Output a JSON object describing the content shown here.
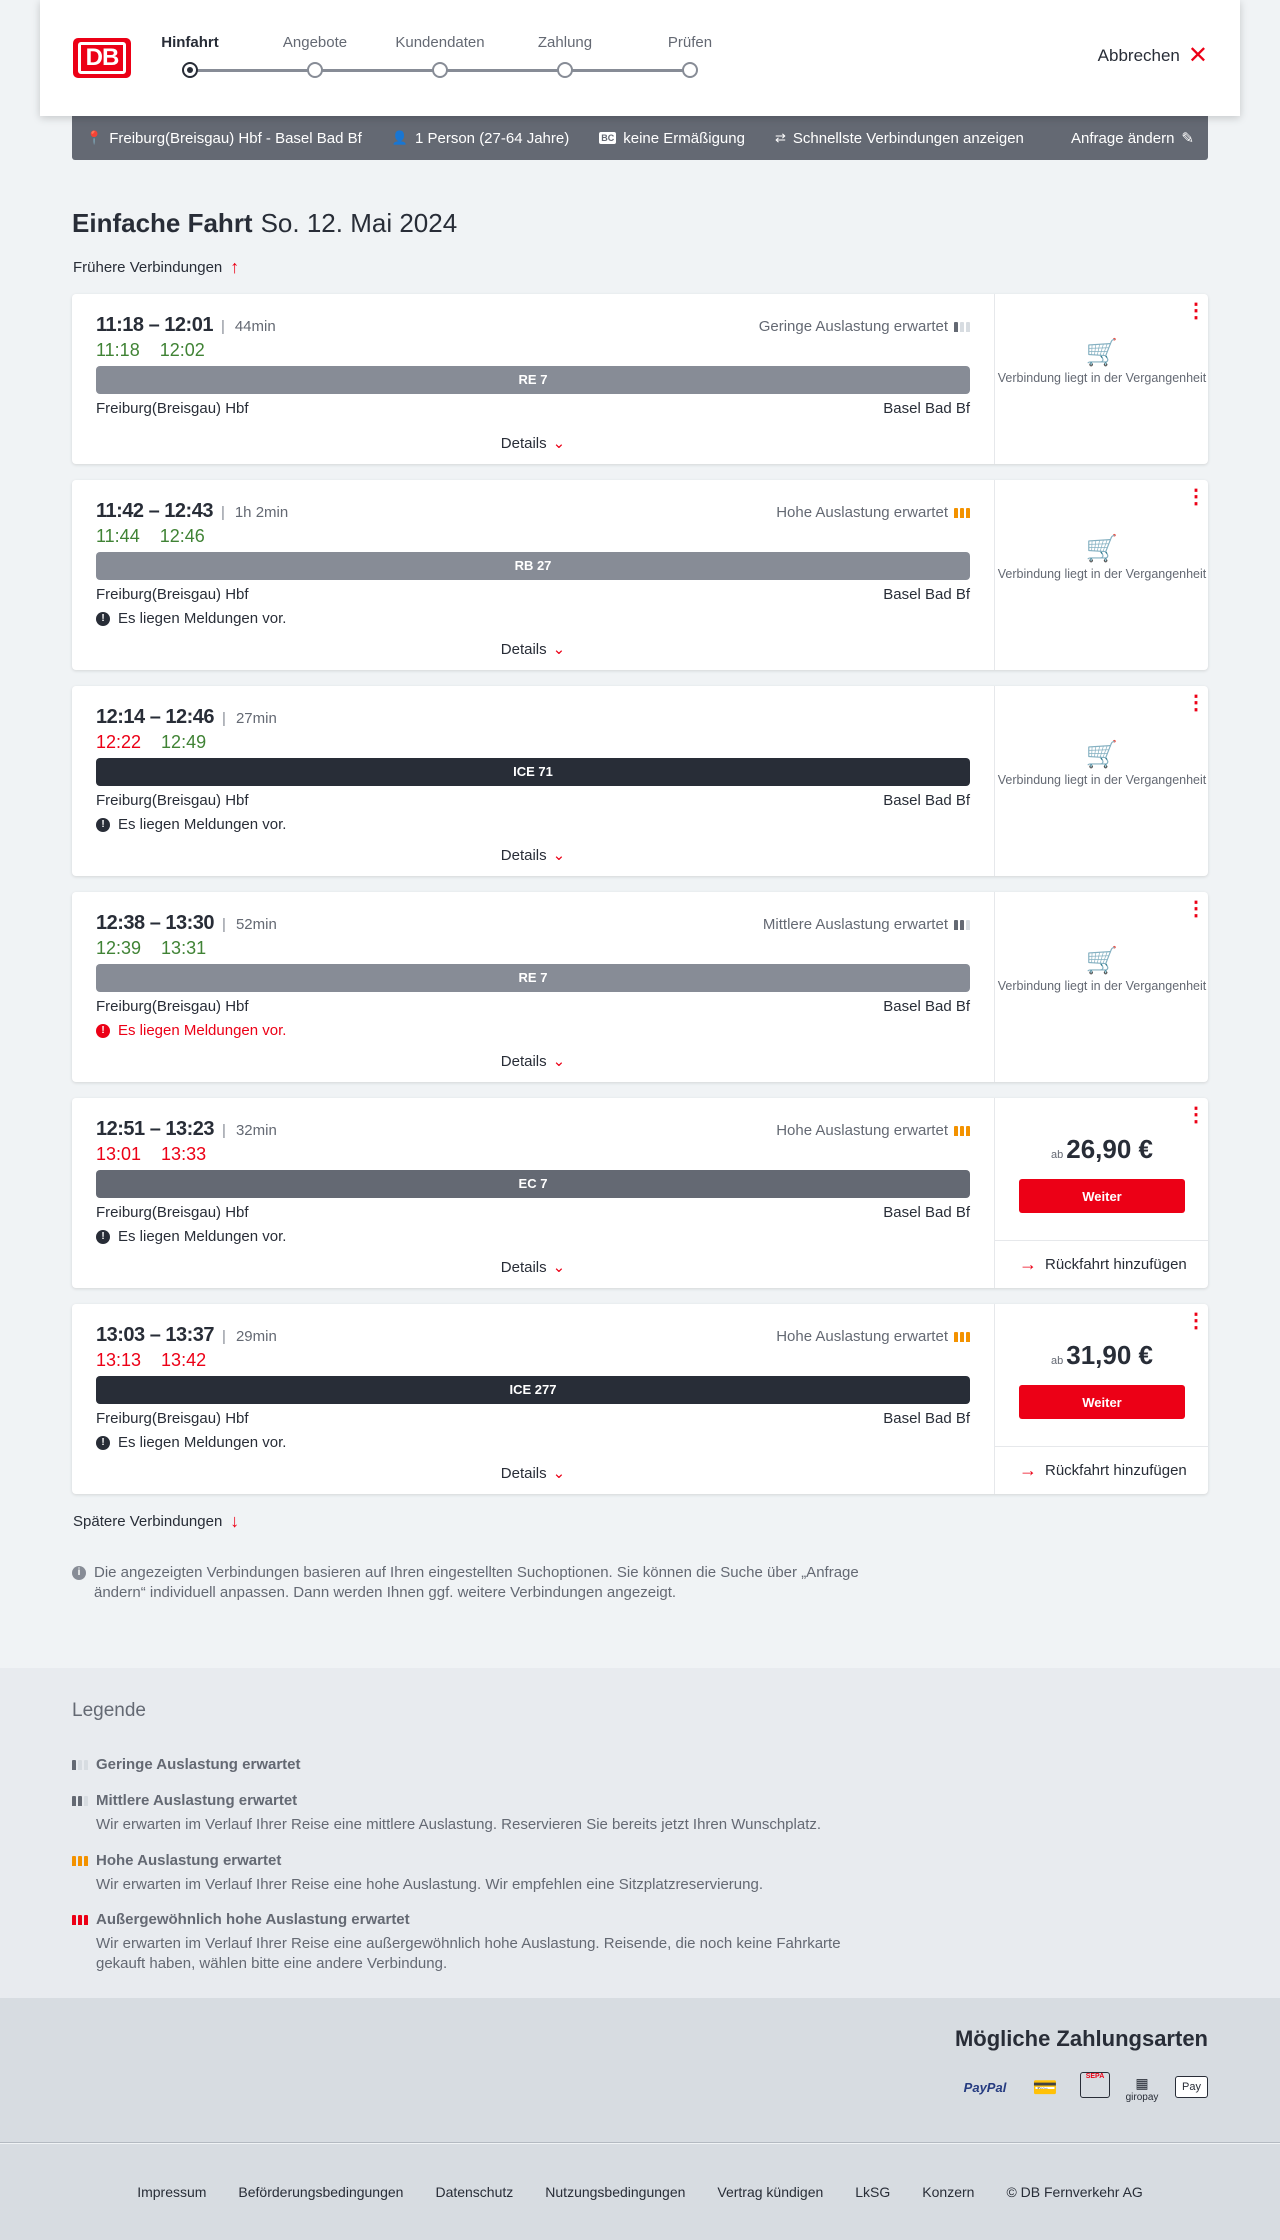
{
  "header": {
    "logo": "DB",
    "cancel": "Abbrechen",
    "steps": [
      {
        "label": "Hinfahrt",
        "active": true
      },
      {
        "label": "Angebote"
      },
      {
        "label": "Kundendaten"
      },
      {
        "label": "Zahlung"
      },
      {
        "label": "Prüfen"
      }
    ]
  },
  "summary": {
    "route": "Freiburg(Breisgau) Hbf - Basel Bad Bf",
    "persons": "1 Person (27-64 Jahre)",
    "discount": "keine Ermäßigung",
    "fastest": "Schnellste Verbindungen anzeigen",
    "change": "Anfrage ändern"
  },
  "title": {
    "type": "Einfache Fahrt",
    "date": "So. 12. Mai 2024"
  },
  "earlier": "Frühere Verbindungen",
  "later": "Spätere Verbindungen",
  "details_label": "Details",
  "past_label": "Verbindung liegt in der Vergangenheit",
  "continue_label": "Weiter",
  "return_label": "Rückfahrt hinzufügen",
  "price_prefix": "ab",
  "colors": {
    "accent": "#ec0016",
    "ontime": "#408335",
    "high_load": "#f39200"
  },
  "connections": [
    {
      "times": "11:18 – 12:01",
      "duration": "44min",
      "rt_dep": "11:18",
      "rt_arr": "12:02",
      "rt_dep_late": false,
      "rt_arr_late": false,
      "load": "Geringe Auslastung erwartet",
      "load_level": 1,
      "train": "RE 7",
      "train_color": "#878c96",
      "from": "Freiburg(Breisgau) Hbf",
      "to": "Basel Bad Bf",
      "past": true
    },
    {
      "times": "11:42 – 12:43",
      "duration": "1h 2min",
      "rt_dep": "11:44",
      "rt_arr": "12:46",
      "rt_dep_late": false,
      "rt_arr_late": false,
      "load": "Hohe Auslastung erwartet",
      "load_level": 3,
      "train": "RB 27",
      "train_color": "#878c96",
      "from": "Freiburg(Breisgau) Hbf",
      "to": "Basel Bad Bf",
      "message": "Es liegen Meldungen vor.",
      "past": true
    },
    {
      "times": "12:14 – 12:46",
      "duration": "27min",
      "rt_dep": "12:22",
      "rt_arr": "12:49",
      "rt_dep_late": true,
      "rt_arr_late": false,
      "train": "ICE 71",
      "train_color": "#282d37",
      "from": "Freiburg(Breisgau) Hbf",
      "to": "Basel Bad Bf",
      "message": "Es liegen Meldungen vor.",
      "past": true
    },
    {
      "times": "12:38 – 13:30",
      "duration": "52min",
      "rt_dep": "12:39",
      "rt_arr": "13:31",
      "rt_dep_late": false,
      "rt_arr_late": false,
      "load": "Mittlere Auslastung erwartet",
      "load_level": 2,
      "train": "RE 7",
      "train_color": "#878c96",
      "from": "Freiburg(Breisgau) Hbf",
      "to": "Basel Bad Bf",
      "message": "Es liegen Meldungen vor.",
      "message_red": true,
      "past": true
    },
    {
      "times": "12:51 – 13:23",
      "duration": "32min",
      "rt_dep": "13:01",
      "rt_arr": "13:33",
      "rt_dep_late": true,
      "rt_arr_late": true,
      "load": "Hohe Auslastung erwartet",
      "load_level": 3,
      "train": "EC 7",
      "train_color": "#646973",
      "from": "Freiburg(Breisgau) Hbf",
      "to": "Basel Bad Bf",
      "message": "Es liegen Meldungen vor.",
      "price": "26,90 €"
    },
    {
      "times": "13:03 – 13:37",
      "duration": "29min",
      "rt_dep": "13:13",
      "rt_arr": "13:42",
      "rt_dep_late": true,
      "rt_arr_late": true,
      "load": "Hohe Auslastung erwartet",
      "load_level": 3,
      "train": "ICE 277",
      "train_color": "#282d37",
      "from": "Freiburg(Breisgau) Hbf",
      "to": "Basel Bad Bf",
      "message": "Es liegen Meldungen vor.",
      "price": "31,90 €"
    }
  ],
  "info": "Die angezeigten Verbindungen basieren auf Ihren eingestellten Suchoptionen. Sie können die Suche über „Anfrage ändern“ individuell anpassen. Dann werden Ihnen ggf. weitere Verbindungen angezeigt.",
  "legend": {
    "title": "Legende",
    "items": [
      {
        "title": "Geringe Auslastung erwartet",
        "level": 1
      },
      {
        "title": "Mittlere Auslastung erwartet",
        "text": "Wir erwarten im Verlauf Ihrer Reise eine mittlere Auslastung. Reservieren Sie bereits jetzt Ihren Wunschplatz.",
        "level": 2
      },
      {
        "title": "Hohe Auslastung erwartet",
        "text": "Wir erwarten im Verlauf Ihrer Reise eine hohe Auslastung. Wir empfehlen eine Sitzplatzreservierung.",
        "level": 3
      },
      {
        "title": "Außergewöhnlich hohe Auslastung erwartet",
        "text": "Wir erwarten im Verlauf Ihrer Reise eine außergewöhnlich hohe Auslastung. Reisende, die noch keine Fahrkarte gekauft haben, wählen bitte eine andere Verbindung.",
        "level": 4
      }
    ]
  },
  "payment": {
    "title": "Mögliche Zahlungsarten",
    "methods": [
      "PayPal",
      "Kreditkarte",
      "SEPA",
      "giropay",
      "Pay"
    ]
  },
  "footer": [
    "Impressum",
    "Beförderungsbedingungen",
    "Datenschutz",
    "Nutzungsbedingungen",
    "Vertrag kündigen",
    "LkSG",
    "Konzern",
    "© DB Fernverkehr AG"
  ]
}
